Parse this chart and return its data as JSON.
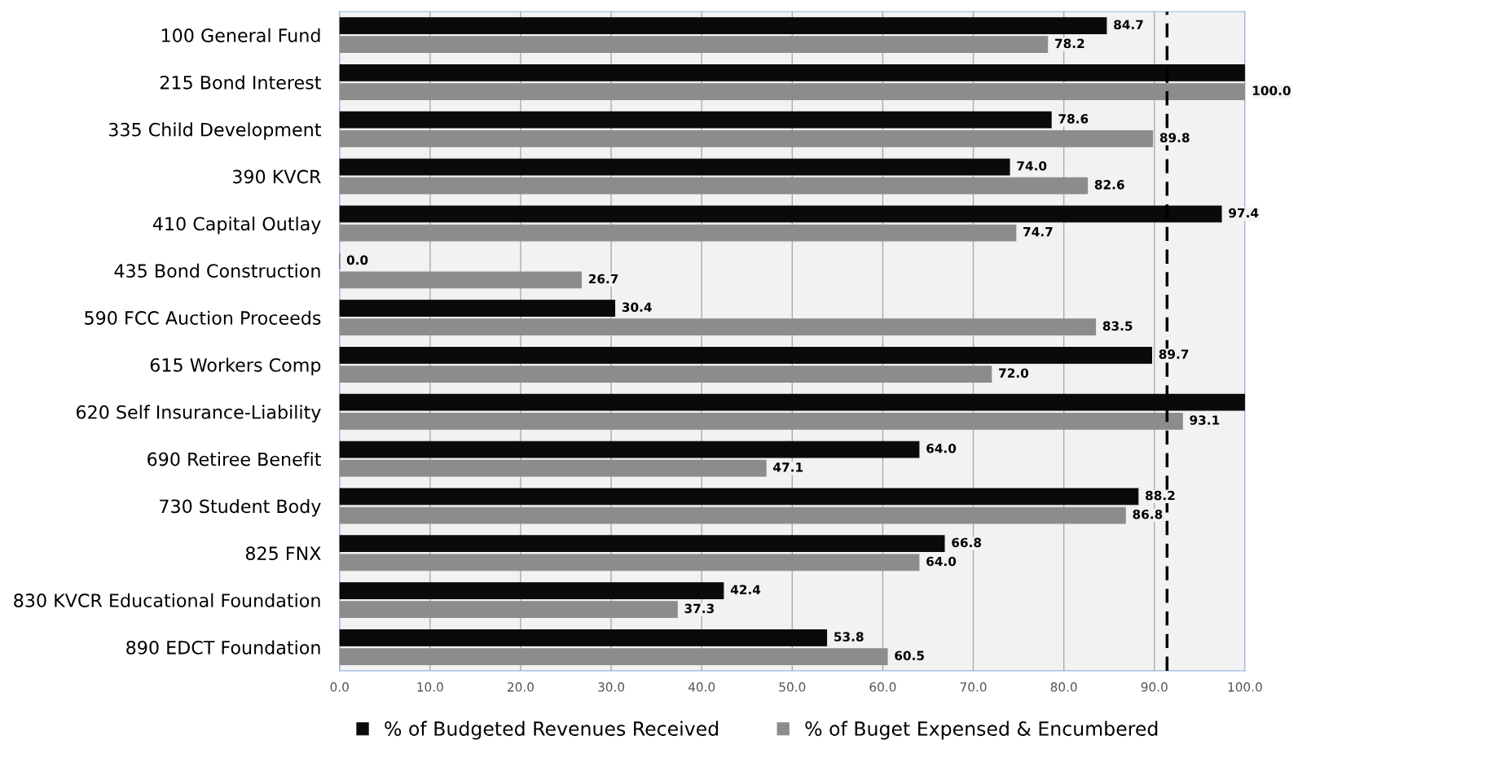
{
  "chart_data": {
    "type": "bar",
    "orientation": "horizontal",
    "categories": [
      "100 General Fund",
      "215 Bond Interest",
      "335 Child Development",
      "390 KVCR",
      "410 Capital Outlay",
      "435 Bond Construction",
      "590 FCC Auction Proceeds",
      "615 Workers Comp",
      "620 Self Insurance-Liability",
      "690 Retiree Benefit",
      "730 Student Body",
      "825 FNX",
      "830 KVCR Educational Foundation",
      "890 EDCT Foundation"
    ],
    "series": [
      {
        "name": "% of Budgeted Revenues Received",
        "color": "#0a0a0a",
        "values": [
          84.7,
          100,
          78.6,
          74.0,
          97.4,
          0.0,
          30.4,
          89.7,
          100,
          64.0,
          88.2,
          66.8,
          42.4,
          53.8
        ],
        "value_labels": [
          "84.7",
          null,
          "78.6",
          "74.0",
          "97.4",
          "0.0",
          "30.4",
          "89.7",
          null,
          "64.0",
          "88.2",
          "66.8",
          "42.4",
          "53.8"
        ]
      },
      {
        "name": "% of Buget Expensed & Encumbered",
        "color": "#8c8c8c",
        "values": [
          78.2,
          100.0,
          89.8,
          82.6,
          74.7,
          26.7,
          83.5,
          72.0,
          93.1,
          47.1,
          86.8,
          64.0,
          37.3,
          60.5
        ],
        "value_labels": [
          "78.2",
          "100.0",
          "89.8",
          "82.6",
          "74.7",
          "26.7",
          "83.5",
          "72.0",
          "93.1",
          "47.1",
          "86.8",
          "64.0",
          "37.3",
          "60.5"
        ]
      }
    ],
    "xlim": [
      0,
      100
    ],
    "xticks": [
      {
        "value": 0,
        "label": "0.0"
      },
      {
        "value": 10,
        "label": "10.0"
      },
      {
        "value": 20,
        "label": "20.0"
      },
      {
        "value": 30,
        "label": "30.0"
      },
      {
        "value": 40,
        "label": "40.0"
      },
      {
        "value": 50,
        "label": "50.0"
      },
      {
        "value": 60,
        "label": "60.0"
      },
      {
        "value": 70,
        "label": "70.0"
      },
      {
        "value": 80,
        "label": "80.0"
      },
      {
        "value": 90,
        "label": "90.0"
      },
      {
        "value": 100,
        "label": "100.0"
      }
    ],
    "ref_lines": [
      {
        "axis": "x",
        "value": 91.4,
        "color": "#000000",
        "line_style": "dashed"
      }
    ],
    "grid": "x",
    "legend": "bottom left"
  }
}
